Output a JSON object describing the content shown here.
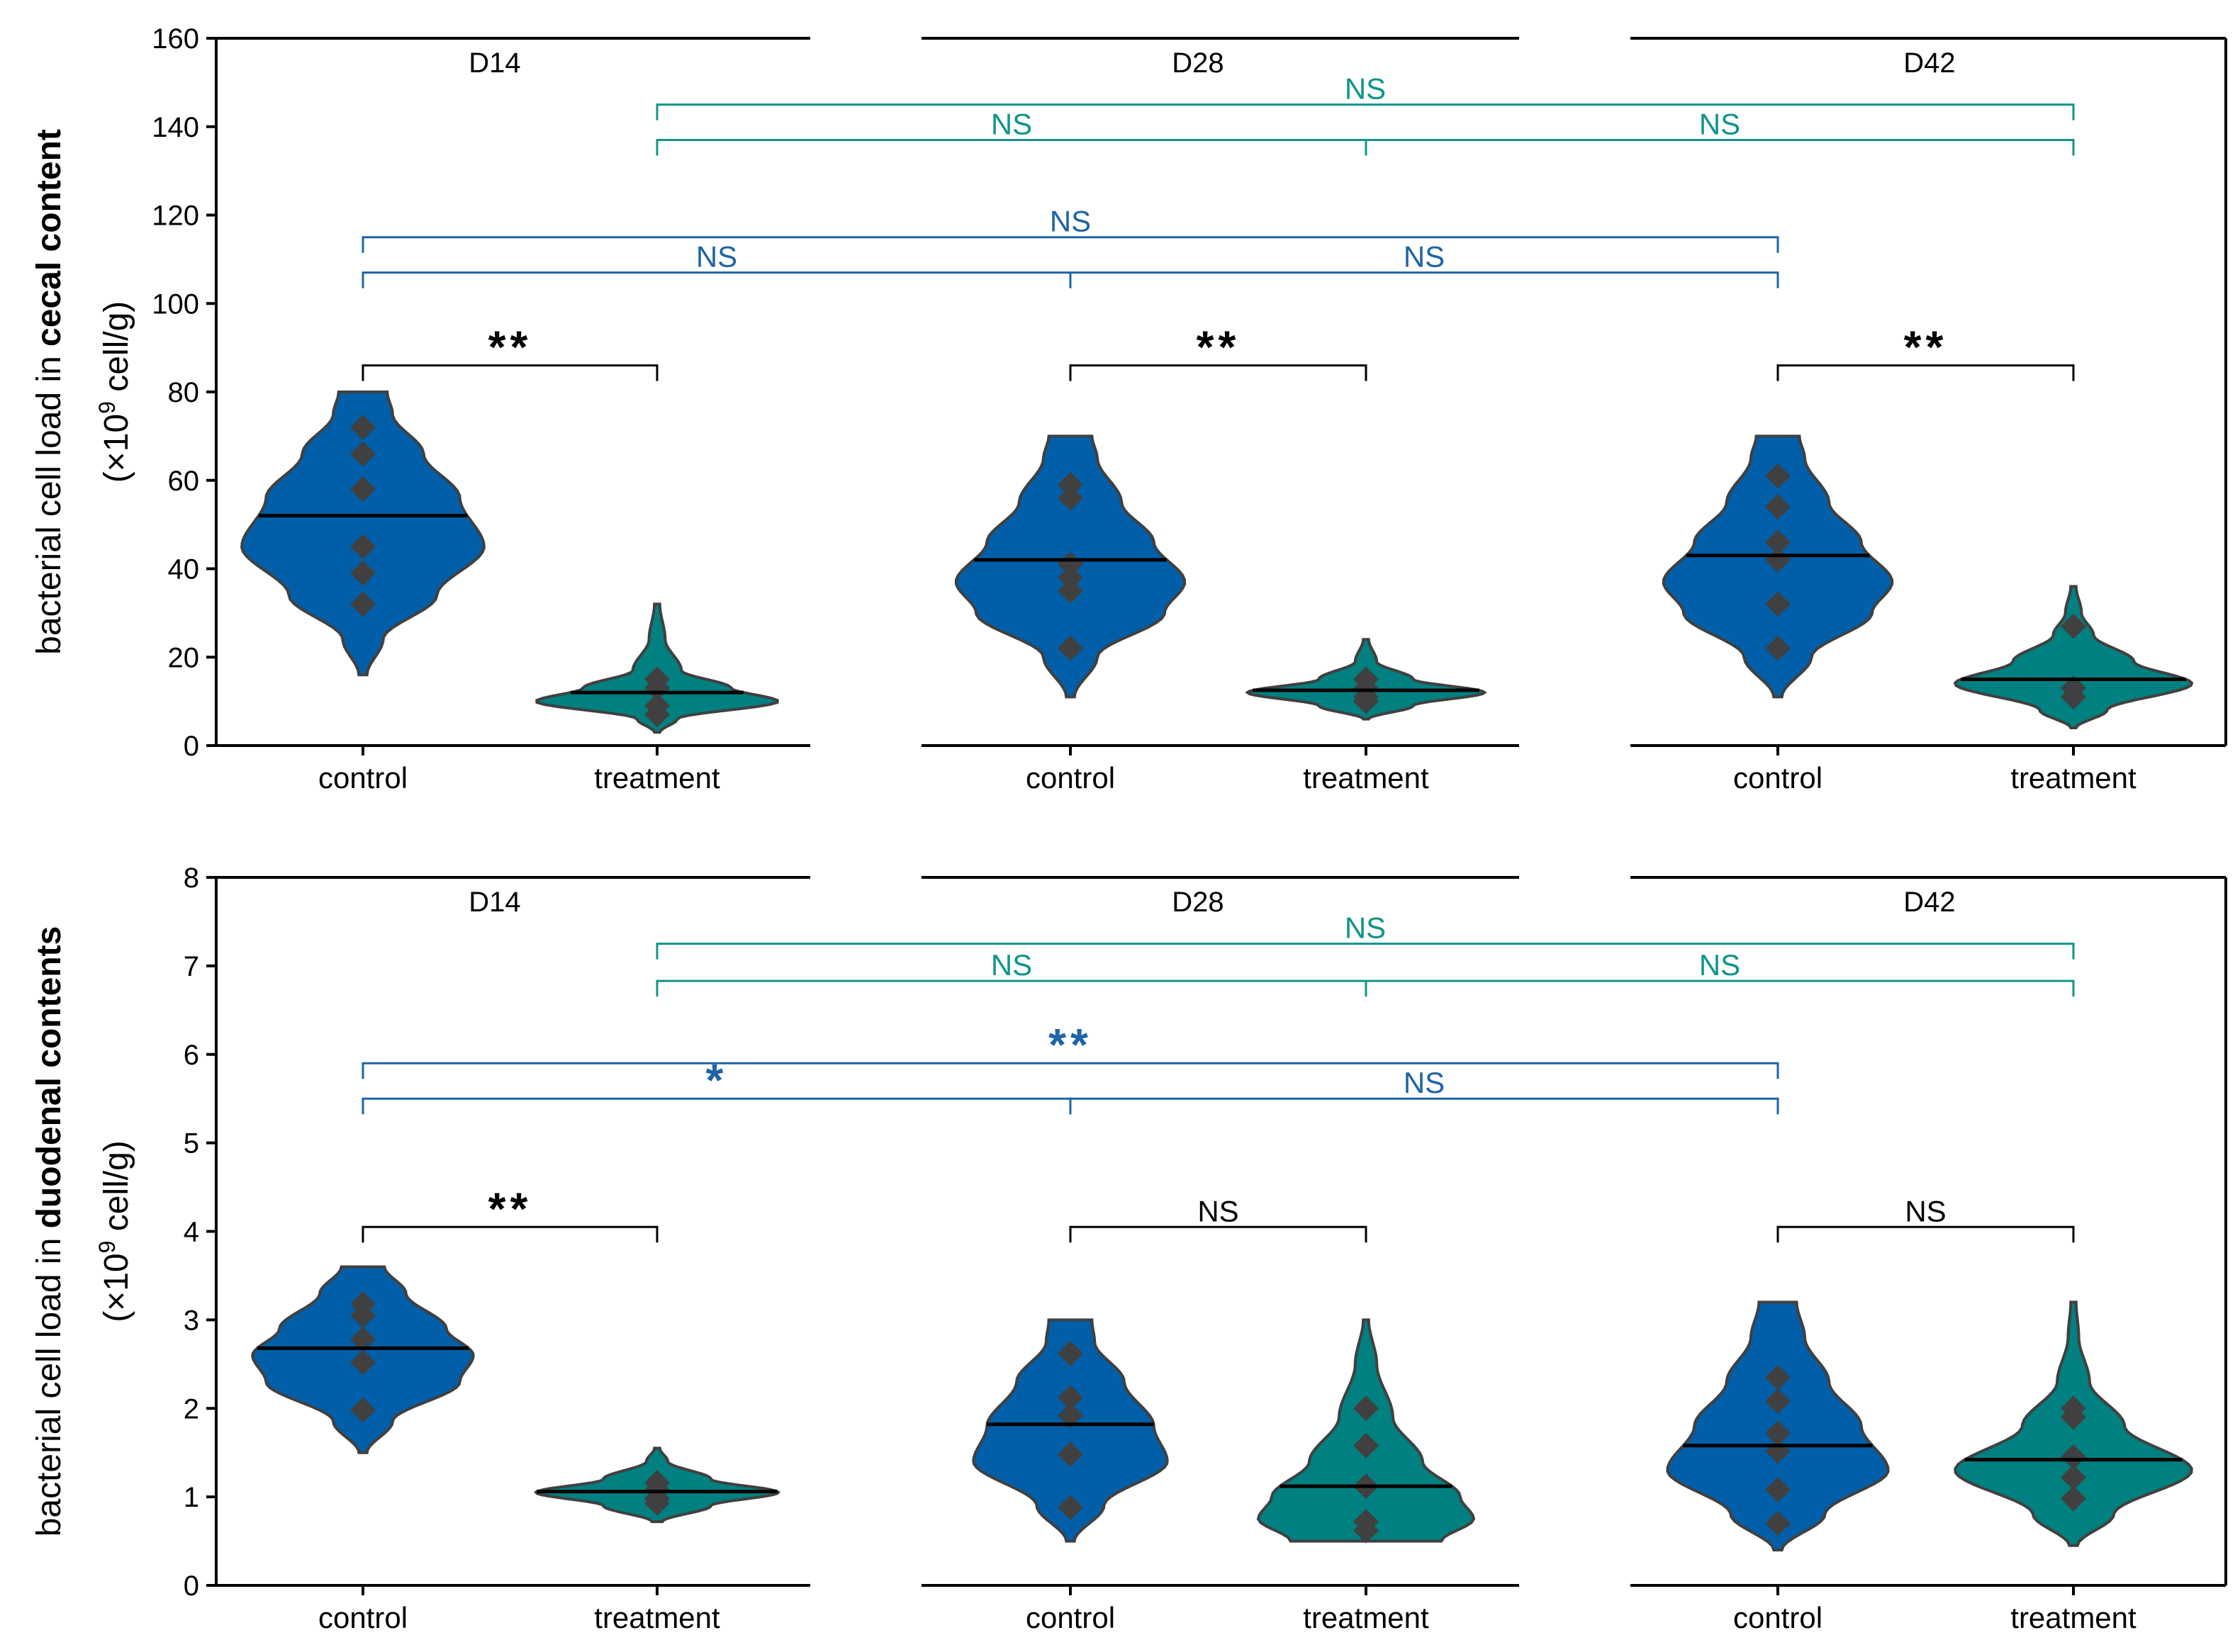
{
  "chart_data": [
    {
      "type": "violin",
      "title": "",
      "ylabel_prefix": "bacterial cell load in ",
      "ylabel_bold": "cecal content",
      "yunit_open": "(×10",
      "yunit_exp": "9",
      "yunit_close": " cell/g)",
      "ylim": [
        0,
        160
      ],
      "yticks": [
        0,
        20,
        40,
        60,
        80,
        100,
        120,
        140,
        160
      ],
      "xlabel": "",
      "day_labels": [
        "D14",
        "D28",
        "D42"
      ],
      "groups": [
        "control",
        "treatment"
      ],
      "tick_labels": [
        "control",
        "treatment",
        "control",
        "treatment",
        "control",
        "treatment"
      ],
      "violins": [
        {
          "day": "D14",
          "group": "control",
          "min": 16,
          "max": 80,
          "median": 52,
          "points": [
            72,
            66,
            58,
            45,
            39,
            32
          ],
          "widths": [
            [
              16,
              0.03
            ],
            [
              24,
              0.15
            ],
            [
              34,
              0.55
            ],
            [
              45,
              0.9
            ],
            [
              56,
              0.72
            ],
            [
              66,
              0.45
            ],
            [
              75,
              0.22
            ],
            [
              80,
              0.18
            ]
          ]
        },
        {
          "day": "D14",
          "group": "treatment",
          "min": 3,
          "max": 32,
          "median": 12,
          "points": [
            15,
            13,
            9,
            7
          ],
          "widths": [
            [
              3,
              0.02
            ],
            [
              6,
              0.15
            ],
            [
              10,
              0.9
            ],
            [
              13,
              0.55
            ],
            [
              17,
              0.18
            ],
            [
              24,
              0.06
            ],
            [
              32,
              0.02
            ]
          ]
        },
        {
          "day": "D28",
          "group": "control",
          "min": 11,
          "max": 70,
          "median": 42,
          "points": [
            59,
            56,
            41,
            38,
            35,
            22
          ],
          "widths": [
            [
              11,
              0.03
            ],
            [
              20,
              0.2
            ],
            [
              30,
              0.7
            ],
            [
              37,
              0.85
            ],
            [
              46,
              0.62
            ],
            [
              55,
              0.38
            ],
            [
              65,
              0.2
            ],
            [
              70,
              0.16
            ]
          ]
        },
        {
          "day": "D28",
          "group": "treatment",
          "min": 6,
          "max": 24,
          "median": 12.5,
          "points": [
            15,
            13,
            11,
            10
          ],
          "widths": [
            [
              6,
              0.02
            ],
            [
              9,
              0.35
            ],
            [
              12,
              0.88
            ],
            [
              15,
              0.35
            ],
            [
              19,
              0.08
            ],
            [
              24,
              0.02
            ]
          ]
        },
        {
          "day": "D42",
          "group": "control",
          "min": 11,
          "max": 70,
          "median": 43,
          "points": [
            61,
            54,
            46,
            42,
            32,
            22
          ],
          "widths": [
            [
              11,
              0.03
            ],
            [
              20,
              0.25
            ],
            [
              30,
              0.7
            ],
            [
              37,
              0.85
            ],
            [
              46,
              0.62
            ],
            [
              55,
              0.38
            ],
            [
              65,
              0.2
            ],
            [
              70,
              0.16
            ]
          ]
        },
        {
          "day": "D42",
          "group": "treatment",
          "min": 4,
          "max": 36,
          "median": 15,
          "points": [
            27,
            13,
            11
          ],
          "widths": [
            [
              4,
              0.02
            ],
            [
              8,
              0.25
            ],
            [
              14,
              0.88
            ],
            [
              19,
              0.45
            ],
            [
              25,
              0.15
            ],
            [
              30,
              0.06
            ],
            [
              36,
              0.02
            ]
          ]
        }
      ],
      "comparisons": [
        {
          "color": "teal",
          "from": 1,
          "to": 5,
          "y": 145,
          "label": "NS"
        },
        {
          "color": "teal",
          "from": 1,
          "to": 3,
          "y": 137,
          "label": "NS"
        },
        {
          "color": "teal",
          "from": 3,
          "to": 5,
          "y": 137,
          "label": "NS"
        },
        {
          "color": "blue",
          "from": 0,
          "to": 4,
          "y": 115,
          "label": "NS"
        },
        {
          "color": "blue",
          "from": 0,
          "to": 2,
          "y": 107,
          "label": "NS"
        },
        {
          "color": "blue",
          "from": 2,
          "to": 4,
          "y": 107,
          "label": "NS"
        },
        {
          "color": "black",
          "from": 0,
          "to": 1,
          "y": 86,
          "label": "**"
        },
        {
          "color": "black",
          "from": 2,
          "to": 3,
          "y": 86,
          "label": "**"
        },
        {
          "color": "black",
          "from": 4,
          "to": 5,
          "y": 86,
          "label": "**"
        }
      ]
    },
    {
      "type": "violin",
      "title": "",
      "ylabel_prefix": "bacterial cell load in ",
      "ylabel_bold": "duodenal contents",
      "yunit_open": "(×10",
      "yunit_exp": "9",
      "yunit_close": " cell/g)",
      "ylim": [
        0,
        8
      ],
      "yticks": [
        0,
        1,
        2,
        3,
        4,
        5,
        6,
        7,
        8
      ],
      "xlabel": "",
      "day_labels": [
        "D14",
        "D28",
        "D42"
      ],
      "groups": [
        "control",
        "treatment"
      ],
      "tick_labels": [
        "control",
        "treatment",
        "control",
        "treatment",
        "control",
        "treatment"
      ],
      "violins": [
        {
          "day": "D14",
          "group": "control",
          "min": 1.5,
          "max": 3.6,
          "median": 2.68,
          "points": [
            3.18,
            3.05,
            2.78,
            2.52,
            1.98
          ],
          "widths": [
            [
              1.5,
              0.03
            ],
            [
              1.85,
              0.22
            ],
            [
              2.3,
              0.72
            ],
            [
              2.6,
              0.82
            ],
            [
              2.9,
              0.62
            ],
            [
              3.3,
              0.32
            ],
            [
              3.6,
              0.16
            ]
          ]
        },
        {
          "day": "D14",
          "group": "treatment",
          "min": 0.72,
          "max": 1.55,
          "median": 1.06,
          "points": [
            1.16,
            1.08,
            0.98,
            0.93
          ],
          "widths": [
            [
              0.72,
              0.04
            ],
            [
              0.9,
              0.4
            ],
            [
              1.05,
              0.9
            ],
            [
              1.2,
              0.4
            ],
            [
              1.4,
              0.08
            ],
            [
              1.55,
              0.02
            ]
          ]
        },
        {
          "day": "D28",
          "group": "control",
          "min": 0.5,
          "max": 3.0,
          "median": 1.82,
          "points": [
            2.62,
            2.12,
            1.92,
            1.48,
            0.88
          ],
          "widths": [
            [
              0.5,
              0.03
            ],
            [
              0.9,
              0.25
            ],
            [
              1.4,
              0.72
            ],
            [
              1.8,
              0.62
            ],
            [
              2.3,
              0.4
            ],
            [
              2.75,
              0.18
            ],
            [
              3.0,
              0.16
            ]
          ]
        },
        {
          "day": "D28",
          "group": "treatment",
          "min": 0.5,
          "max": 3.0,
          "median": 1.12,
          "points": [
            2.0,
            1.58,
            1.12,
            0.72,
            0.62
          ],
          "widths": [
            [
              0.5,
              0.56
            ],
            [
              0.75,
              0.8
            ],
            [
              1.0,
              0.7
            ],
            [
              1.4,
              0.42
            ],
            [
              1.9,
              0.2
            ],
            [
              2.5,
              0.08
            ],
            [
              3.0,
              0.02
            ]
          ]
        },
        {
          "day": "D42",
          "group": "control",
          "min": 0.4,
          "max": 3.2,
          "median": 1.58,
          "points": [
            2.35,
            2.08,
            1.72,
            1.52,
            1.08,
            0.7
          ],
          "widths": [
            [
              0.4,
              0.03
            ],
            [
              0.8,
              0.35
            ],
            [
              1.3,
              0.82
            ],
            [
              1.8,
              0.62
            ],
            [
              2.3,
              0.38
            ],
            [
              2.8,
              0.2
            ],
            [
              3.2,
              0.14
            ]
          ]
        },
        {
          "day": "D42",
          "group": "treatment",
          "min": 0.45,
          "max": 3.2,
          "median": 1.42,
          "points": [
            2.0,
            1.9,
            1.45,
            1.22,
            0.98
          ],
          "widths": [
            [
              0.45,
              0.03
            ],
            [
              0.8,
              0.3
            ],
            [
              1.3,
              0.88
            ],
            [
              1.8,
              0.38
            ],
            [
              2.3,
              0.12
            ],
            [
              2.8,
              0.04
            ],
            [
              3.2,
              0.02
            ]
          ]
        }
      ],
      "comparisons": [
        {
          "color": "teal",
          "from": 1,
          "to": 5,
          "y": 7.25,
          "label": "NS"
        },
        {
          "color": "teal",
          "from": 1,
          "to": 3,
          "y": 6.83,
          "label": "NS"
        },
        {
          "color": "teal",
          "from": 3,
          "to": 5,
          "y": 6.83,
          "label": "NS"
        },
        {
          "color": "blue",
          "from": 0,
          "to": 4,
          "y": 5.9,
          "label": "**"
        },
        {
          "color": "blue",
          "from": 0,
          "to": 2,
          "y": 5.5,
          "label": "*"
        },
        {
          "color": "blue",
          "from": 2,
          "to": 4,
          "y": 5.5,
          "label": "NS"
        },
        {
          "color": "black",
          "from": 0,
          "to": 1,
          "y": 4.05,
          "label": "**"
        },
        {
          "color": "black",
          "from": 2,
          "to": 3,
          "y": 4.05,
          "label": "NS"
        },
        {
          "color": "black",
          "from": 4,
          "to": 5,
          "y": 4.05,
          "label": "NS"
        }
      ]
    }
  ],
  "colors": {
    "control_fill": "#005fa8",
    "treatment_fill": "#008080",
    "violin_stroke": "#404040",
    "point": "#404040",
    "median": "#000000",
    "blue_bracket": "#1f64a6",
    "teal_bracket": "#10958a",
    "black_bracket": "#000000"
  }
}
